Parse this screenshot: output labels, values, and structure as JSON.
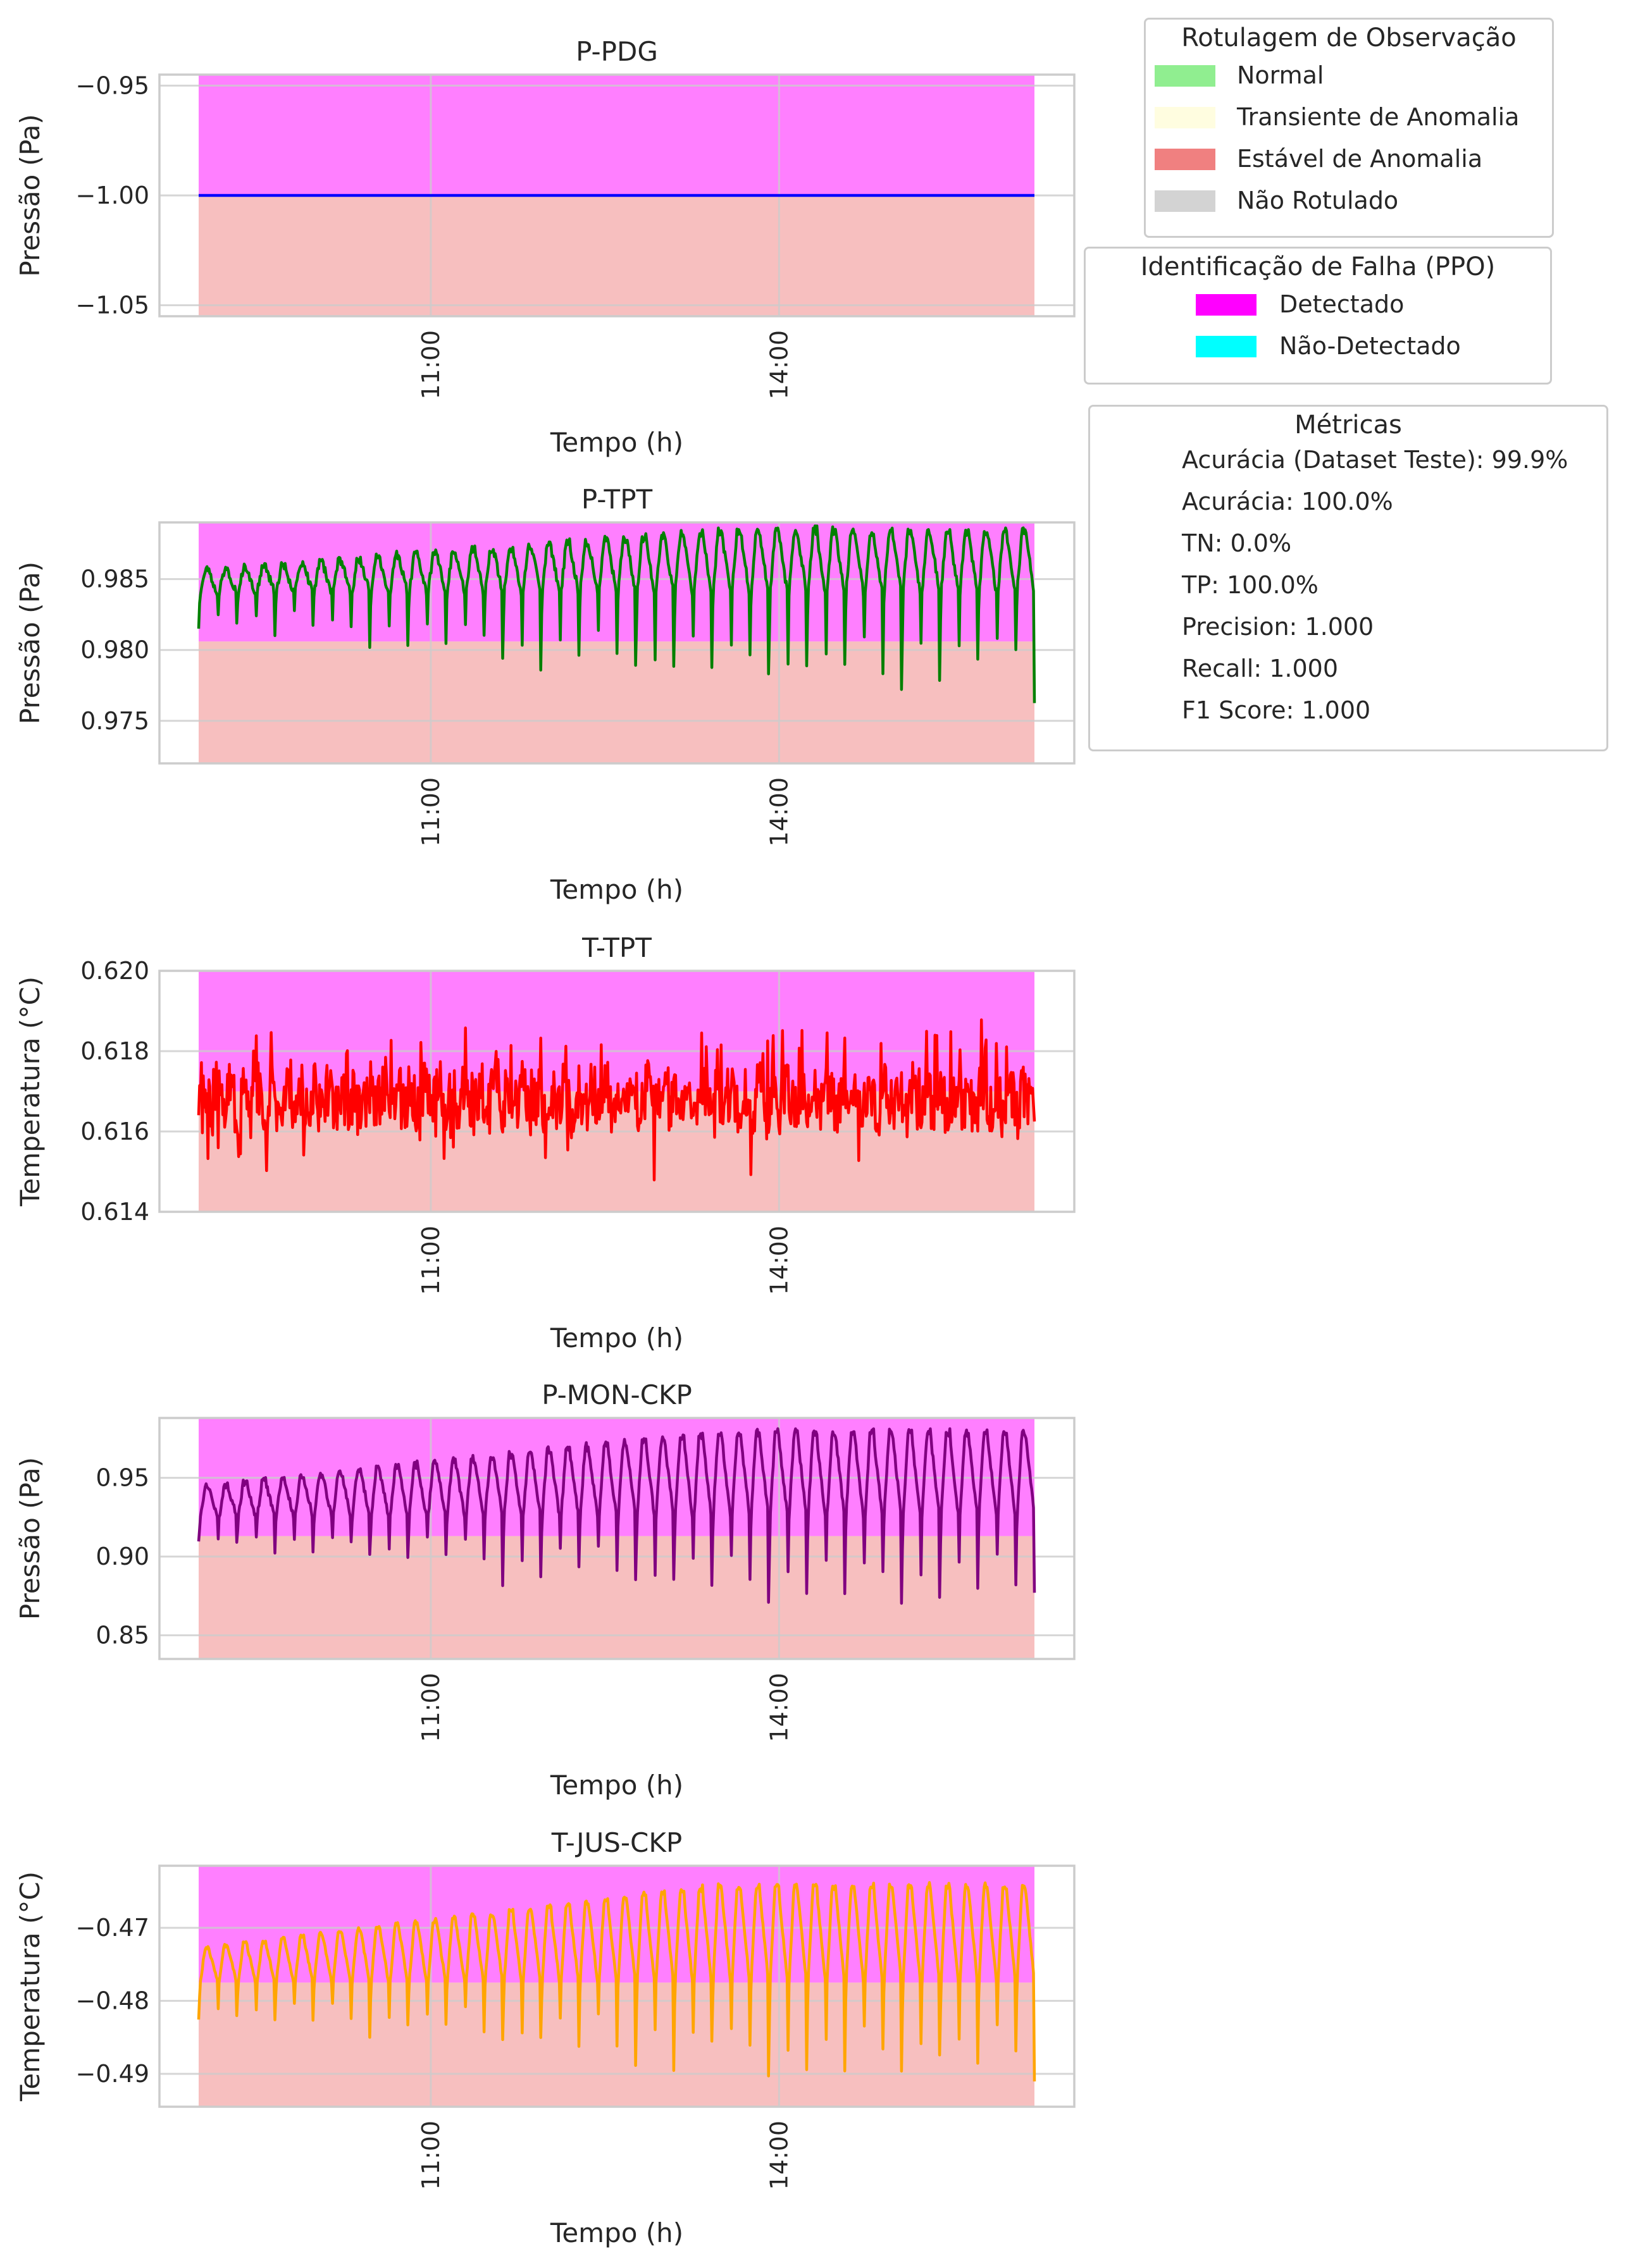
{
  "legend_observation": {
    "title": "Rotulagem de Observação",
    "items": [
      {
        "label": "Normal",
        "color": "#90ee90"
      },
      {
        "label": "Transiente de Anomalia",
        "color": "#fffde0"
      },
      {
        "label": "Estável de Anomalia",
        "color": "#f08080"
      },
      {
        "label": "Não Rotulado",
        "color": "#d3d3d3"
      }
    ]
  },
  "legend_fault": {
    "title": "Identificação de Falha (PPO)",
    "items": [
      {
        "label": "Detectado",
        "color": "#ff00ff"
      },
      {
        "label": "Não-Detectado",
        "color": "#00ffff"
      }
    ]
  },
  "metrics": {
    "title": "Métricas",
    "lines": [
      "Acurácia (Dataset Teste): 99.9%",
      "Acurácia: 100.0%",
      "TN: 0.0%",
      "TP: 100.0%",
      "Precision: 1.000",
      "Recall: 1.000",
      "F1 Score: 1.000"
    ]
  },
  "chart_data": [
    {
      "type": "line",
      "title": "P-PDG",
      "xlabel": "Tempo (h)",
      "ylabel": "Pressão (Pa)",
      "color": "#0000ff",
      "x_range": [
        "09:00",
        "16:12"
      ],
      "x_ticks": [
        "11:00",
        "14:00"
      ],
      "ylim": [
        -1.055,
        -0.945
      ],
      "y_ticks": [
        -0.95,
        -1.0,
        -1.05
      ],
      "y_tick_labels": [
        "−0.95",
        "−1.00",
        "−1.05"
      ],
      "anomaly_stable_band": [
        -1.055,
        -1.0
      ],
      "detected_band": [
        -1.0,
        -0.945
      ],
      "pattern": "flat",
      "base": -1.0,
      "amp_up": 0.0,
      "amp_down": 0.0,
      "noise": 0.0,
      "cycles": 0,
      "seed": 1
    },
    {
      "type": "line",
      "title": "P-TPT",
      "xlabel": "Tempo (h)",
      "ylabel": "Pressão (Pa)",
      "color": "#008000",
      "x_range": [
        "09:00",
        "16:12"
      ],
      "x_ticks": [
        "11:00",
        "14:00"
      ],
      "ylim": [
        0.972,
        0.989
      ],
      "y_ticks": [
        0.975,
        0.98,
        0.985
      ],
      "y_tick_labels": [
        "0.975",
        "0.980",
        "0.985"
      ],
      "anomaly_stable_band": [
        0.972,
        0.9806
      ],
      "detected_band": [
        0.9806,
        0.989
      ],
      "pattern": "cycles",
      "base": 0.984,
      "amp_up": 0.0045,
      "amp_down": 0.008,
      "noise": 0.0006,
      "cycles": 44,
      "seed": 2
    },
    {
      "type": "line",
      "title": "T-TPT",
      "xlabel": "Tempo (h)",
      "ylabel": "Temperatura (°C)",
      "color": "#ff0000",
      "x_range": [
        "09:00",
        "16:12"
      ],
      "x_ticks": [
        "11:00",
        "14:00"
      ],
      "ylim": [
        0.614,
        0.62
      ],
      "y_ticks": [
        0.614,
        0.616,
        0.618,
        0.62
      ],
      "y_tick_labels": [
        "0.614",
        "0.616",
        "0.618",
        "0.620"
      ],
      "anomaly_stable_band": [
        0.614,
        0.617
      ],
      "detected_band": [
        0.617,
        0.62
      ],
      "pattern": "noisy",
      "base": 0.6168,
      "amp_up": 0.0012,
      "amp_down": 0.001,
      "noise": 0.0007,
      "cycles": 60,
      "seed": 3
    },
    {
      "type": "line",
      "title": "P-MON-CKP",
      "xlabel": "Tempo (h)",
      "ylabel": "Pressão (Pa)",
      "color": "#800080",
      "x_range": [
        "09:00",
        "16:12"
      ],
      "x_ticks": [
        "11:00",
        "14:00"
      ],
      "ylim": [
        0.835,
        0.988
      ],
      "y_ticks": [
        0.85,
        0.9,
        0.95
      ],
      "y_tick_labels": [
        "0.85",
        "0.90",
        "0.95"
      ],
      "anomaly_stable_band": [
        0.835,
        0.913
      ],
      "detected_band": [
        0.913,
        0.988
      ],
      "pattern": "cycles",
      "base": 0.925,
      "amp_up": 0.055,
      "amp_down": 0.065,
      "noise": 0.004,
      "cycles": 44,
      "seed": 4
    },
    {
      "type": "line",
      "title": "T-JUS-CKP",
      "xlabel": "Tempo (h)",
      "ylabel": "Temperatura (°C)",
      "color": "#ffa500",
      "x_range": [
        "09:00",
        "16:12"
      ],
      "x_ticks": [
        "11:00",
        "14:00"
      ],
      "ylim": [
        -0.4945,
        -0.4615
      ],
      "y_ticks": [
        -0.47,
        -0.48,
        -0.49
      ],
      "y_tick_labels": [
        "−0.47",
        "−0.48",
        "−0.49"
      ],
      "anomaly_stable_band": [
        -0.4945,
        -0.4775
      ],
      "detected_band": [
        -0.4775,
        -0.4615
      ],
      "pattern": "cycles",
      "base": -0.4775,
      "amp_up": 0.0135,
      "amp_down": 0.015,
      "noise": 0.0005,
      "cycles": 44,
      "seed": 5
    }
  ]
}
